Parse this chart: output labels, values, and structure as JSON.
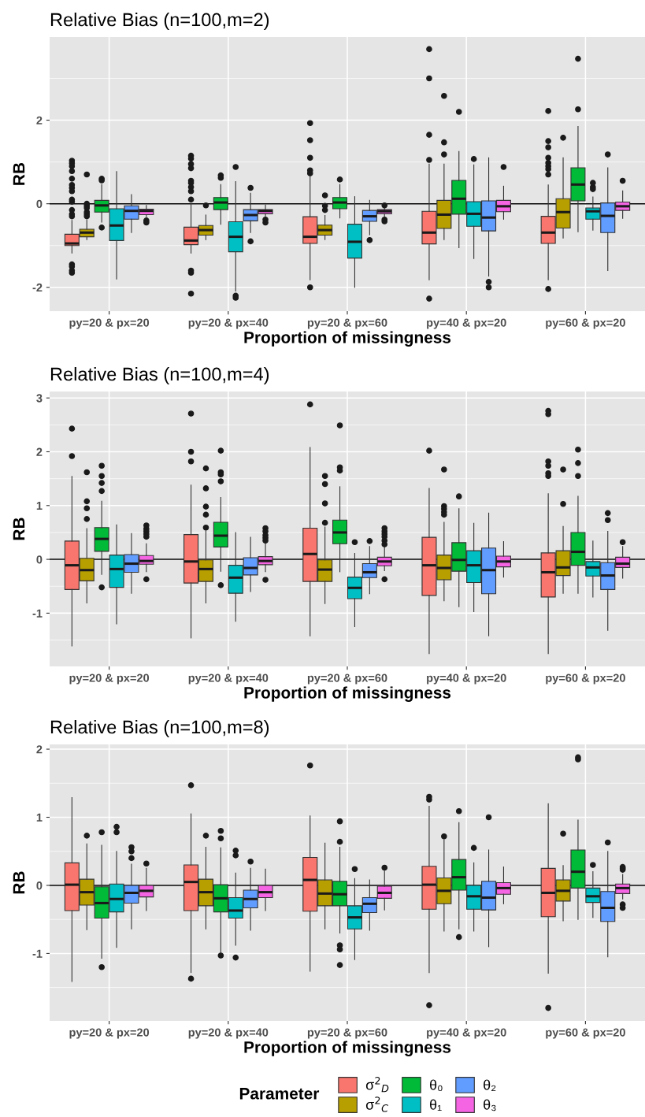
{
  "chart_data": [
    {
      "type": "box",
      "title": "Relative Bias (n=100,m=2)",
      "xlabel": "Proportion of missingness",
      "ylabel": "RB",
      "categories": [
        "py=20 & px=20",
        "py=20 & px=40",
        "py=20 & px=60",
        "py=40 & px=20",
        "py=60 & px=20"
      ],
      "ylim": [
        -2.57,
        3.99
      ],
      "yticks": [
        -2,
        0,
        2
      ],
      "grid": true,
      "legend": "bottom",
      "legend_title": "Parameter",
      "ref_lines": [
        {
          "axis": "y",
          "value": 0,
          "color": "#000000"
        }
      ],
      "series": [
        {
          "name": "σ$^{2}$$_{D}$",
          "color": "#F8766D",
          "boxes": [
            {
              "low": -1.18,
              "q1": -1.0,
              "median": -0.95,
              "q3": -0.73,
              "high": -0.4,
              "outliers": [
                1.03,
                0.97,
                0.9,
                0.78,
                0.6,
                0.45,
                0.38,
                0.3,
                0.1,
                0.05,
                -0.15,
                -0.25,
                -0.3,
                -1.45,
                -1.5,
                -1.6,
                -1.65
              ]
            },
            {
              "low": -1.18,
              "q1": -0.98,
              "median": -0.88,
              "q3": -0.56,
              "high": 0.0,
              "outliers": [
                1.15,
                1.08,
                0.95,
                0.85,
                0.55,
                0.5,
                0.4,
                0.3,
                0.1,
                -1.6,
                -1.65,
                -2.15
              ]
            },
            {
              "low": -1.82,
              "q1": -0.95,
              "median": -0.79,
              "q3": -0.31,
              "high": 0.69,
              "outliers": [
                1.93,
                1.52,
                1.1,
                0.8,
                0.73,
                -2.0
              ]
            },
            {
              "low": -1.82,
              "q1": -0.96,
              "median": -0.69,
              "q3": -0.18,
              "high": 0.95,
              "outliers": [
                3.7,
                3.0,
                1.65,
                1.05,
                -2.27
              ]
            },
            {
              "low": -1.82,
              "q1": -0.95,
              "median": -0.69,
              "q3": -0.3,
              "high": 0.45,
              "outliers": [
                2.22,
                1.5,
                1.35,
                1.1,
                0.98,
                0.9,
                0.83,
                0.7,
                -2.04
              ]
            }
          ]
        },
        {
          "name": "σ$^{2}$$_{C}$",
          "color": "#B79F00",
          "boxes": [
            {
              "low": -0.86,
              "q1": -0.79,
              "median": -0.69,
              "q3": -0.61,
              "high": -0.39,
              "outliers": [
                0.7,
                0.0,
                -0.05,
                -0.1,
                -0.2,
                -0.25,
                -0.3
              ]
            },
            {
              "low": -0.86,
              "q1": -0.75,
              "median": -0.63,
              "q3": -0.52,
              "high": -0.27,
              "outliers": [
                -0.04
              ]
            },
            {
              "low": -0.86,
              "q1": -0.75,
              "median": -0.63,
              "q3": -0.51,
              "high": -0.28,
              "outliers": [
                0.2,
                -0.05,
                -0.15
              ]
            },
            {
              "low": -0.86,
              "q1": -0.59,
              "median": -0.26,
              "q3": 0.08,
              "high": 0.95,
              "outliers": [
                2.58,
                1.47,
                1.18
              ]
            },
            {
              "low": -0.82,
              "q1": -0.58,
              "median": -0.2,
              "q3": 0.12,
              "high": 1.1,
              "outliers": [
                1.58
              ]
            }
          ]
        },
        {
          "name": "θ₀",
          "color": "#00BA38",
          "boxes": [
            {
              "low": -0.44,
              "q1": -0.2,
              "median": -0.04,
              "q3": 0.08,
              "high": 0.46,
              "outliers": [
                0.6,
                0.56,
                -0.57
              ]
            },
            {
              "low": -0.49,
              "q1": -0.14,
              "median": 0.03,
              "q3": 0.15,
              "high": 0.46,
              "outliers": [
                0.68,
                0.62
              ]
            },
            {
              "low": -0.34,
              "q1": -0.12,
              "median": 0.03,
              "q3": 0.15,
              "high": 0.46,
              "outliers": [
                0.58
              ]
            },
            {
              "low": -1.05,
              "q1": -0.25,
              "median": 0.12,
              "q3": 0.56,
              "high": 1.25,
              "outliers": [
                2.2
              ]
            },
            {
              "low": -0.67,
              "q1": 0.07,
              "median": 0.46,
              "q3": 0.86,
              "high": 1.85,
              "outliers": [
                3.47,
                2.26
              ]
            }
          ]
        },
        {
          "name": "θ₁",
          "color": "#00BFC4",
          "boxes": [
            {
              "low": -1.8,
              "q1": -0.88,
              "median": -0.52,
              "q3": -0.12,
              "high": 0.77
            },
            {
              "low": -2.09,
              "q1": -1.15,
              "median": -0.79,
              "q3": -0.43,
              "high": 0.53,
              "outliers": [
                0.88,
                -2.2,
                -2.25
              ]
            },
            {
              "low": -2.0,
              "q1": -1.3,
              "median": -0.91,
              "q3": -0.49,
              "high": 0.17
            },
            {
              "low": -1.31,
              "q1": -0.54,
              "median": -0.24,
              "q3": 0.05,
              "high": 0.93,
              "outliers": [
                1.07
              ]
            },
            {
              "low": -0.63,
              "q1": -0.37,
              "median": -0.18,
              "q3": -0.1,
              "high": 0.16,
              "outliers": [
                0.5,
                0.4,
                0.35
              ]
            }
          ]
        },
        {
          "name": "θ₂",
          "color": "#619CFF",
          "boxes": [
            {
              "low": -0.69,
              "q1": -0.37,
              "median": -0.17,
              "q3": -0.05,
              "high": 0.22
            },
            {
              "low": -0.69,
              "q1": -0.41,
              "median": -0.27,
              "q3": -0.14,
              "high": 0.25,
              "outliers": [
                0.38,
                -0.9
              ]
            },
            {
              "low": -0.74,
              "q1": -0.42,
              "median": -0.3,
              "q3": -0.16,
              "high": 0.08,
              "outliers": [
                -0.87
              ]
            },
            {
              "low": -1.73,
              "q1": -0.65,
              "median": -0.33,
              "q3": 0.07,
              "high": 1.1,
              "outliers": [
                -1.87,
                -2.0
              ]
            },
            {
              "low": -1.6,
              "q1": -0.69,
              "median": -0.29,
              "q3": 0.02,
              "high": 0.86,
              "outliers": [
                1.18
              ]
            }
          ]
        },
        {
          "name": "θ₃",
          "color": "#F564E3",
          "boxes": [
            {
              "low": -0.31,
              "q1": -0.26,
              "median": -0.17,
              "q3": -0.13,
              "high": -0.04,
              "outliers": [
                -0.4,
                -0.45
              ]
            },
            {
              "low": -0.3,
              "q1": -0.24,
              "median": -0.17,
              "q3": -0.14,
              "high": -0.03,
              "outliers": [
                -0.38,
                -0.45
              ]
            },
            {
              "low": -0.3,
              "q1": -0.24,
              "median": -0.18,
              "q3": -0.14,
              "high": -0.08,
              "outliers": [
                -0.04,
                -0.38,
                -0.42
              ]
            },
            {
              "low": -0.37,
              "q1": -0.19,
              "median": -0.06,
              "q3": 0.08,
              "high": 0.42,
              "outliers": [
                0.88
              ]
            },
            {
              "low": -0.35,
              "q1": -0.16,
              "median": -0.06,
              "q3": 0.04,
              "high": 0.31,
              "outliers": [
                0.55
              ]
            }
          ]
        }
      ]
    },
    {
      "type": "box",
      "title": "Relative Bias (n=100,m=4)",
      "xlabel": "Proportion of missingness",
      "ylabel": "RB",
      "categories": [
        "py=20 & px=20",
        "py=20 & px=40",
        "py=20 & px=60",
        "py=40 & px=20",
        "py=60 & px=20"
      ],
      "ylim": [
        -1.99,
        3.12
      ],
      "yticks": [
        -1,
        0,
        1,
        2,
        3
      ],
      "grid": true,
      "ref_lines": [
        {
          "axis": "y",
          "value": 0,
          "color": "#000000"
        }
      ],
      "series": [
        {
          "color": "#F8766D",
          "boxes": [
            {
              "low": -1.61,
              "q1": -0.56,
              "median": -0.11,
              "q3": 0.34,
              "high": 1.54,
              "outliers": [
                2.43,
                1.92
              ]
            },
            {
              "low": -1.46,
              "q1": -0.44,
              "median": -0.04,
              "q3": 0.46,
              "high": 1.38,
              "outliers": [
                2.71,
                2.0,
                1.82
              ]
            },
            {
              "low": -1.42,
              "q1": -0.41,
              "median": 0.1,
              "q3": 0.58,
              "high": 2.08,
              "outliers": [
                2.88
              ]
            },
            {
              "low": -1.75,
              "q1": -0.67,
              "median": -0.11,
              "q3": 0.41,
              "high": 1.32,
              "outliers": [
                2.02
              ]
            },
            {
              "low": -1.75,
              "q1": -0.7,
              "median": -0.24,
              "q3": 0.12,
              "high": 1.22,
              "outliers": [
                2.76,
                2.7,
                1.82,
                1.74,
                1.6,
                1.55
              ]
            }
          ]
        },
        {
          "color": "#B79F00",
          "boxes": [
            {
              "low": -0.81,
              "q1": -0.4,
              "median": -0.2,
              "q3": 0.02,
              "high": 0.57,
              "outliers": [
                1.62,
                1.08,
                0.95,
                0.75
              ]
            },
            {
              "low": -0.81,
              "q1": -0.41,
              "median": -0.18,
              "q3": -0.01,
              "high": 0.53,
              "outliers": [
                1.69,
                1.32,
                0.98,
                0.83,
                0.59
              ]
            },
            {
              "low": -0.82,
              "q1": -0.41,
              "median": -0.19,
              "q3": -0.01,
              "high": 0.6,
              "outliers": [
                1.55,
                1.4,
                1.04,
                0.68
              ]
            },
            {
              "low": -0.77,
              "q1": -0.38,
              "median": -0.16,
              "q3": 0.08,
              "high": 0.69,
              "outliers": [
                1.67,
                0.99,
                0.94,
                0.88,
                0.83
              ]
            },
            {
              "low": -0.63,
              "q1": -0.3,
              "median": -0.15,
              "q3": 0.16,
              "high": 0.61,
              "outliers": [
                1.67,
                1.03
              ]
            }
          ]
        },
        {
          "color": "#00BA38",
          "boxes": [
            {
              "low": -0.28,
              "q1": 0.15,
              "median": 0.38,
              "q3": 0.59,
              "high": 1.08,
              "outliers": [
                1.74,
                1.55,
                1.42,
                1.27,
                -0.52
              ]
            },
            {
              "low": -0.22,
              "q1": 0.23,
              "median": 0.44,
              "q3": 0.69,
              "high": 1.15,
              "outliers": [
                2.02,
                1.62,
                1.58,
                1.45,
                -0.48
              ]
            },
            {
              "low": -0.23,
              "q1": 0.29,
              "median": 0.5,
              "q3": 0.73,
              "high": 1.35,
              "outliers": [
                2.49,
                1.71,
                1.65
              ]
            },
            {
              "low": -0.88,
              "q1": -0.22,
              "median": -0.01,
              "q3": 0.31,
              "high": 0.94,
              "outliers": [
                1.17
              ]
            },
            {
              "low": -0.63,
              "q1": -0.11,
              "median": 0.14,
              "q3": 0.5,
              "high": 1.17,
              "outliers": [
                2.04,
                1.79,
                1.55
              ]
            }
          ]
        },
        {
          "color": "#00BFC4",
          "boxes": [
            {
              "low": -1.2,
              "q1": -0.52,
              "median": -0.18,
              "q3": 0.08,
              "high": 0.64
            },
            {
              "low": -1.15,
              "q1": -0.63,
              "median": -0.34,
              "q3": -0.11,
              "high": 0.5
            },
            {
              "low": -1.25,
              "q1": -0.73,
              "median": -0.53,
              "q3": -0.33,
              "high": 0.11,
              "outliers": [
                0.32
              ]
            },
            {
              "low": -0.97,
              "q1": -0.43,
              "median": -0.11,
              "q3": 0.16,
              "high": 0.67
            },
            {
              "low": -0.7,
              "q1": -0.31,
              "median": -0.15,
              "q3": -0.04,
              "high": 0.34
            }
          ]
        },
        {
          "color": "#619CFF",
          "boxes": [
            {
              "low": -0.63,
              "q1": -0.24,
              "median": -0.08,
              "q3": 0.09,
              "high": 0.48
            },
            {
              "low": -0.6,
              "q1": -0.29,
              "median": -0.16,
              "q3": 0.03,
              "high": 0.41
            },
            {
              "low": -0.64,
              "q1": -0.34,
              "median": -0.24,
              "q3": -0.08,
              "high": 0.24,
              "outliers": [
                0.34
              ]
            },
            {
              "low": -1.42,
              "q1": -0.64,
              "median": -0.2,
              "q3": 0.21,
              "high": 0.86
            },
            {
              "low": -1.32,
              "q1": -0.56,
              "median": -0.3,
              "q3": -0.06,
              "high": 0.52,
              "outliers": [
                0.86,
                0.73
              ]
            }
          ]
        },
        {
          "color": "#F564E3",
          "boxes": [
            {
              "low": -0.23,
              "q1": -0.09,
              "median": -0.03,
              "q3": 0.07,
              "high": 0.29,
              "outliers": [
                0.63,
                0.57,
                0.52,
                0.47,
                0.42,
                -0.37
              ]
            },
            {
              "low": -0.23,
              "q1": -0.1,
              "median": -0.03,
              "q3": 0.05,
              "high": 0.3,
              "outliers": [
                0.58,
                0.52,
                0.45,
                0.4,
                0.35,
                -0.38
              ]
            },
            {
              "low": -0.21,
              "q1": -0.12,
              "median": -0.04,
              "q3": 0.04,
              "high": 0.25,
              "outliers": [
                0.58,
                0.52,
                0.47,
                0.42,
                0.35,
                0.28,
                -0.37
              ]
            },
            {
              "low": -0.33,
              "q1": -0.14,
              "median": -0.04,
              "q3": 0.06,
              "high": 0.33
            },
            {
              "low": -0.35,
              "q1": -0.15,
              "median": -0.08,
              "q3": 0.04,
              "high": 0.24,
              "outliers": [
                0.32
              ]
            }
          ]
        }
      ]
    },
    {
      "type": "box",
      "title": "Relative Bias (n=100,m=8)",
      "xlabel": "Proportion of missingness",
      "ylabel": "RB",
      "categories": [
        "py=20 & px=20",
        "py=20 & px=40",
        "py=20 & px=60",
        "py=40 & px=20",
        "py=60 & px=20"
      ],
      "ylim": [
        -1.99,
        2.07
      ],
      "yticks": [
        -1,
        0,
        1,
        2
      ],
      "grid": true,
      "ref_lines": [
        {
          "axis": "y",
          "value": 0,
          "color": "#000000"
        }
      ],
      "series": [
        {
          "color": "#F8766D",
          "boxes": [
            {
              "low": -1.41,
              "q1": -0.37,
              "median": 0.01,
              "q3": 0.33,
              "high": 1.29
            },
            {
              "low": -1.28,
              "q1": -0.37,
              "median": 0.05,
              "q3": 0.3,
              "high": 1.05,
              "outliers": [
                1.47,
                -1.37
              ]
            },
            {
              "low": -1.26,
              "q1": -0.38,
              "median": 0.08,
              "q3": 0.41,
              "high": 1.02,
              "outliers": [
                1.76
              ]
            },
            {
              "low": -1.28,
              "q1": -0.35,
              "median": 0.01,
              "q3": 0.28,
              "high": 1.16,
              "outliers": [
                1.3,
                1.26,
                -1.76
              ]
            },
            {
              "low": -1.29,
              "q1": -0.46,
              "median": -0.11,
              "q3": 0.25,
              "high": 1.2,
              "outliers": [
                -1.8
              ]
            }
          ]
        },
        {
          "color": "#B79F00",
          "boxes": [
            {
              "low": -0.65,
              "q1": -0.29,
              "median": -0.1,
              "q3": 0.09,
              "high": 0.61,
              "outliers": [
                0.73
              ]
            },
            {
              "low": -0.64,
              "q1": -0.3,
              "median": -0.1,
              "q3": 0.09,
              "high": 0.56,
              "outliers": [
                0.73
              ]
            },
            {
              "low": -0.64,
              "q1": -0.3,
              "median": -0.12,
              "q3": 0.08,
              "high": 0.62
            },
            {
              "low": -0.67,
              "q1": -0.27,
              "median": -0.08,
              "q3": 0.11,
              "high": 0.67,
              "outliers": [
                0.72
              ]
            },
            {
              "low": -0.52,
              "q1": -0.23,
              "median": -0.08,
              "q3": 0.08,
              "high": 0.29,
              "outliers": [
                0.76
              ]
            }
          ]
        },
        {
          "color": "#00BA38",
          "boxes": [
            {
              "low": -1.07,
              "q1": -0.48,
              "median": -0.26,
              "q3": -0.02,
              "high": 0.59,
              "outliers": [
                0.78,
                -1.2
              ]
            },
            {
              "low": -0.99,
              "q1": -0.39,
              "median": -0.19,
              "q3": 0.01,
              "high": 0.55,
              "outliers": [
                0.8,
                0.69,
                -1.03
              ]
            },
            {
              "low": -0.7,
              "q1": -0.3,
              "median": -0.13,
              "q3": 0.06,
              "high": 0.56,
              "outliers": [
                0.94,
                0.64,
                -0.88,
                -0.94,
                -1.17
              ]
            },
            {
              "low": -0.64,
              "q1": -0.07,
              "median": 0.12,
              "q3": 0.38,
              "high": 0.92,
              "outliers": [
                1.09,
                -0.76
              ]
            },
            {
              "low": -0.5,
              "q1": -0.04,
              "median": 0.2,
              "q3": 0.52,
              "high": 0.96,
              "outliers": [
                1.88,
                1.85
              ]
            }
          ]
        },
        {
          "color": "#00BFC4",
          "boxes": [
            {
              "low": -0.91,
              "q1": -0.39,
              "median": -0.2,
              "q3": 0.02,
              "high": 0.5,
              "outliers": [
                0.86,
                0.78
              ]
            },
            {
              "low": -0.88,
              "q1": -0.48,
              "median": -0.37,
              "q3": -0.18,
              "high": 0.18,
              "outliers": [
                0.51,
                0.44,
                -1.06
              ]
            },
            {
              "low": -1.09,
              "q1": -0.64,
              "median": -0.47,
              "q3": -0.3,
              "high": 0.1,
              "outliers": [
                0.24
              ]
            },
            {
              "low": -0.67,
              "q1": -0.35,
              "median": -0.16,
              "q3": 0.0,
              "high": 0.33,
              "outliers": [
                0.55
              ]
            },
            {
              "low": -0.47,
              "q1": -0.25,
              "median": -0.16,
              "q3": -0.04,
              "high": 0.2,
              "outliers": [
                0.3
              ]
            }
          ]
        },
        {
          "color": "#619CFF",
          "boxes": [
            {
              "low": -0.64,
              "q1": -0.26,
              "median": -0.11,
              "q3": 0.0,
              "high": 0.31,
              "outliers": [
                0.56,
                0.5,
                0.4
              ]
            },
            {
              "low": -0.66,
              "q1": -0.33,
              "median": -0.2,
              "q3": -0.07,
              "high": 0.25,
              "outliers": [
                0.35
              ]
            },
            {
              "low": -0.66,
              "q1": -0.4,
              "median": -0.27,
              "q3": -0.18,
              "high": 0.08
            },
            {
              "low": -0.9,
              "q1": -0.36,
              "median": -0.18,
              "q3": 0.06,
              "high": 0.52,
              "outliers": [
                1.0
              ]
            },
            {
              "low": -1.05,
              "q1": -0.53,
              "median": -0.33,
              "q3": -0.09,
              "high": 0.5,
              "outliers": [
                0.63
              ]
            }
          ]
        },
        {
          "color": "#F564E3",
          "boxes": [
            {
              "low": -0.37,
              "q1": -0.17,
              "median": -0.08,
              "q3": 0.0,
              "high": 0.25,
              "outliers": [
                0.32
              ]
            },
            {
              "low": -0.37,
              "q1": -0.18,
              "median": -0.1,
              "q3": 0.0,
              "high": 0.24
            },
            {
              "low": -0.36,
              "q1": -0.19,
              "median": -0.11,
              "q3": -0.01,
              "high": 0.21,
              "outliers": [
                0.26
              ]
            },
            {
              "low": -0.27,
              "q1": -0.13,
              "median": -0.04,
              "q3": 0.04,
              "high": 0.27
            },
            {
              "low": -0.2,
              "q1": -0.12,
              "median": -0.04,
              "q3": 0.02,
              "high": 0.16,
              "outliers": [
                0.27,
                0.25,
                0.23,
                -0.28,
                -0.33
              ]
            }
          ]
        }
      ]
    }
  ]
}
